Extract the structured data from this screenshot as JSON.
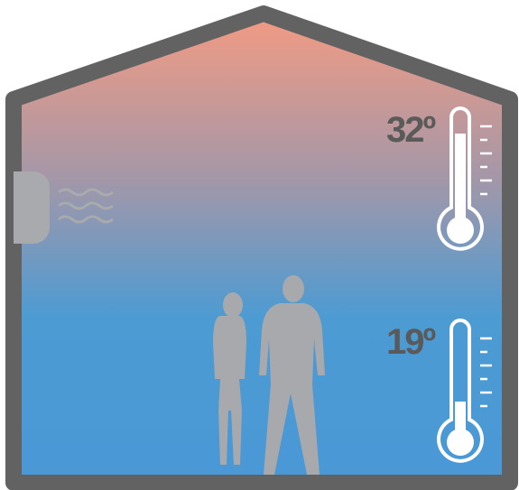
{
  "thermometers": [
    {
      "label": "32º"
    },
    {
      "label": "19º"
    }
  ]
}
